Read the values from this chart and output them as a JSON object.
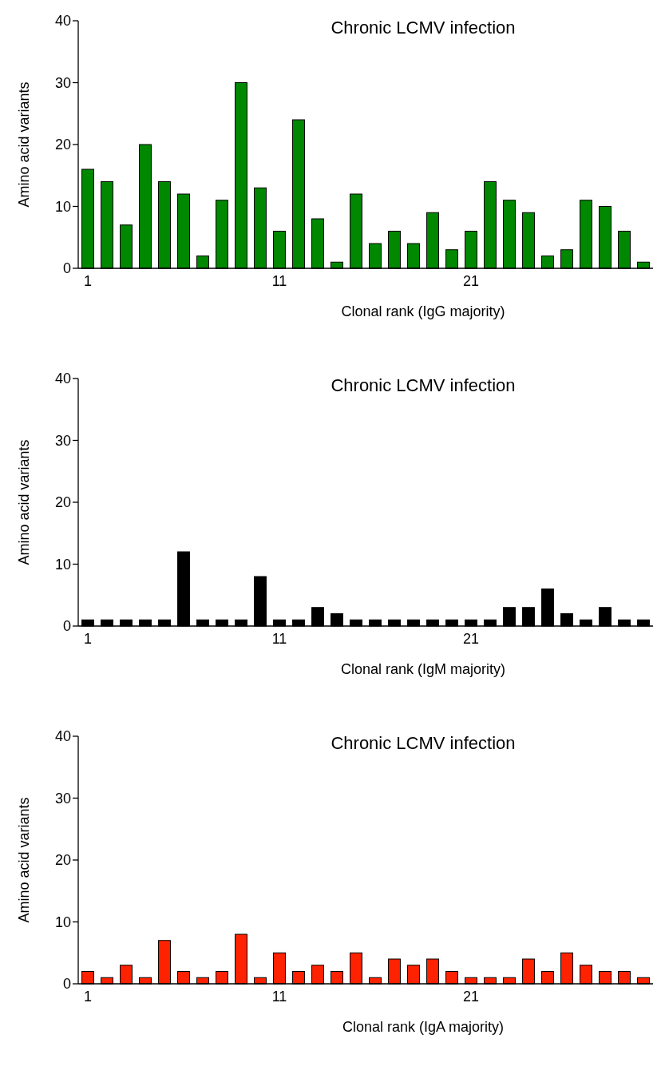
{
  "chart_data": [
    {
      "type": "bar",
      "title": "Chronic LCMV infection",
      "xlabel": "Clonal rank (IgG majority)",
      "ylabel": "Amino acid variants",
      "categories": [
        "1",
        null,
        null,
        null,
        null,
        null,
        null,
        null,
        null,
        null,
        "11",
        null,
        null,
        null,
        null,
        null,
        null,
        null,
        null,
        null,
        "21",
        null,
        null,
        null,
        null,
        null,
        null,
        null,
        null,
        null
      ],
      "values": [
        16,
        14,
        7,
        20,
        14,
        12,
        2,
        11,
        30,
        13,
        6,
        24,
        8,
        1,
        12,
        4,
        6,
        4,
        9,
        3,
        6,
        14,
        11,
        9,
        2,
        3,
        11,
        10,
        6,
        1
      ],
      "color": "#008800",
      "ylim": [
        0,
        40
      ],
      "yticks": [
        0,
        10,
        20,
        30,
        40
      ]
    },
    {
      "type": "bar",
      "title": "Chronic LCMV infection",
      "xlabel": "Clonal rank (IgM majority)",
      "ylabel": "Amino acid variants",
      "categories": [
        "1",
        null,
        null,
        null,
        null,
        null,
        null,
        null,
        null,
        null,
        "11",
        null,
        null,
        null,
        null,
        null,
        null,
        null,
        null,
        null,
        "21",
        null,
        null,
        null,
        null,
        null,
        null,
        null,
        null,
        null
      ],
      "values": [
        1,
        1,
        1,
        1,
        1,
        12,
        1,
        1,
        1,
        8,
        1,
        1,
        3,
        2,
        1,
        1,
        1,
        1,
        1,
        1,
        1,
        1,
        3,
        3,
        6,
        2,
        1,
        3,
        1,
        1
      ],
      "color": "#000000",
      "ylim": [
        0,
        40
      ],
      "yticks": [
        0,
        10,
        20,
        30,
        40
      ]
    },
    {
      "type": "bar",
      "title": "Chronic LCMV infection",
      "xlabel": "Clonal rank (IgA majority)",
      "ylabel": "Amino acid variants",
      "categories": [
        "1",
        null,
        null,
        null,
        null,
        null,
        null,
        null,
        null,
        null,
        "11",
        null,
        null,
        null,
        null,
        null,
        null,
        null,
        null,
        null,
        "21",
        null,
        null,
        null,
        null,
        null,
        null,
        null,
        null,
        null
      ],
      "values": [
        2,
        1,
        3,
        1,
        7,
        2,
        1,
        2,
        8,
        1,
        5,
        2,
        3,
        2,
        5,
        1,
        4,
        3,
        4,
        2,
        1,
        1,
        1,
        4,
        2,
        5,
        3,
        2,
        2,
        1
      ],
      "color": "#ff2200",
      "ylim": [
        0,
        40
      ],
      "yticks": [
        0,
        10,
        20,
        30,
        40
      ]
    }
  ]
}
